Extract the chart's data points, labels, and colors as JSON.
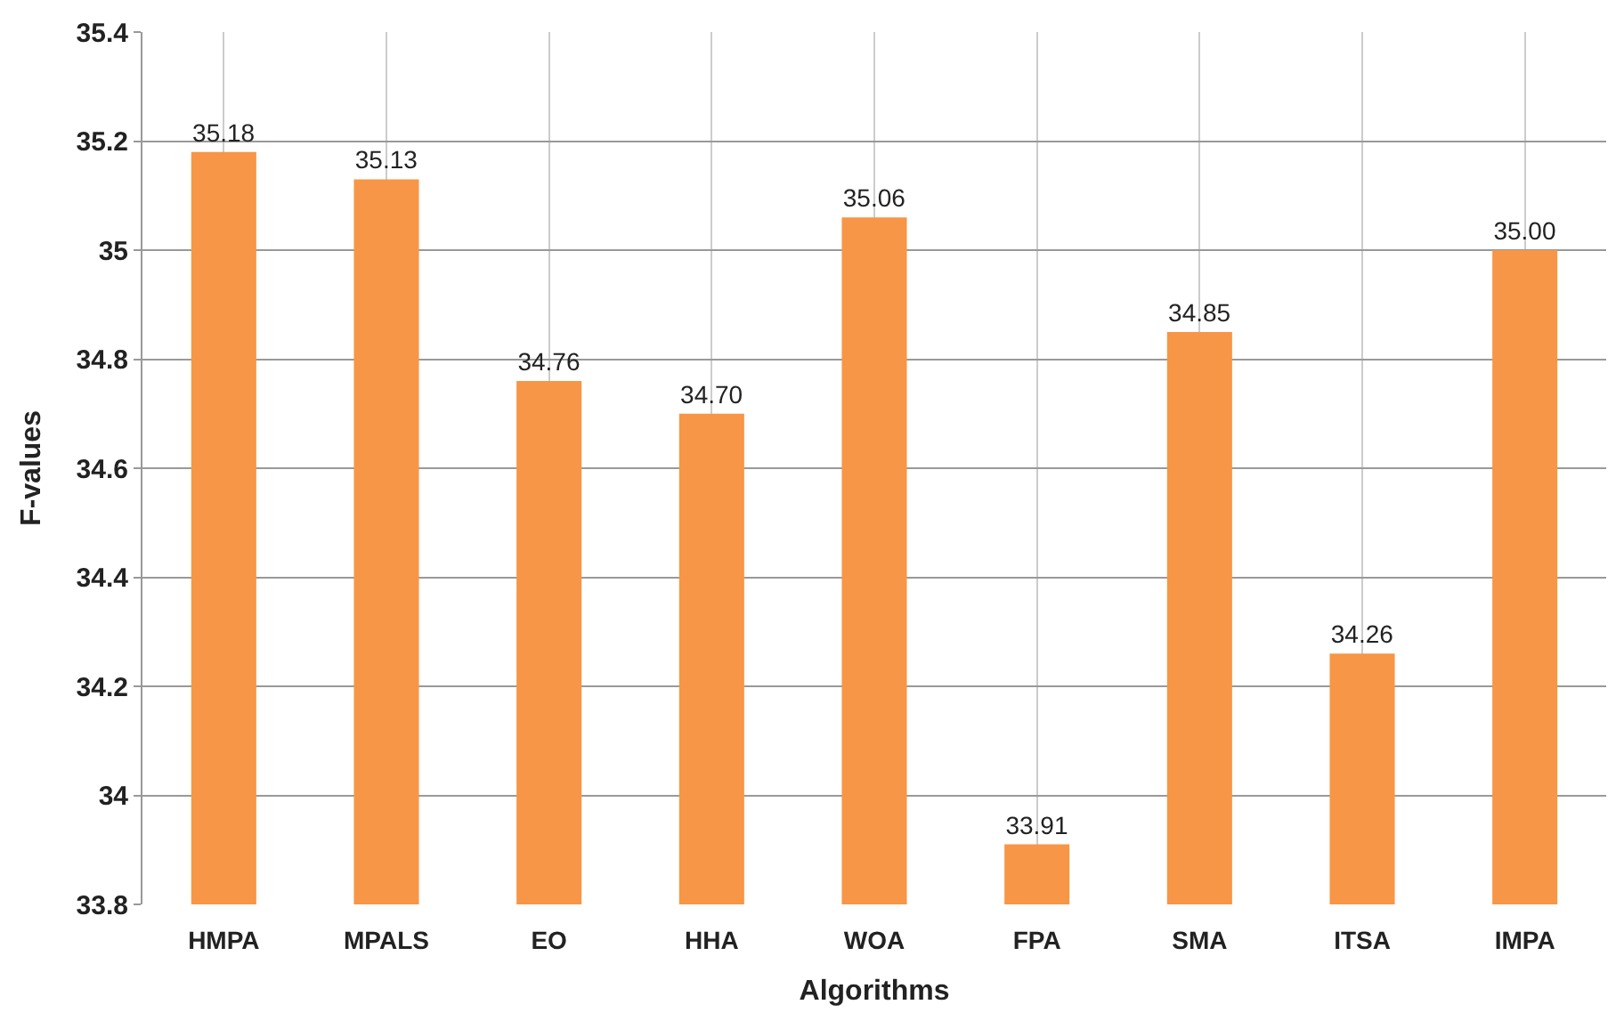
{
  "chart_data": {
    "type": "bar",
    "xlabel": "Algorithms",
    "ylabel": "F-values",
    "categories": [
      "HMPA",
      "MPALS",
      "EO",
      "HHA",
      "WOA",
      "FPA",
      "SMA",
      "ITSA",
      "IMPA"
    ],
    "values": [
      35.18,
      35.13,
      34.76,
      34.7,
      35.06,
      33.91,
      34.85,
      34.26,
      35.0
    ],
    "value_labels": [
      "35.18",
      "35.13",
      "34.76",
      "34.70",
      "35.06",
      "33.91",
      "34.85",
      "34.26",
      "35.00"
    ],
    "color": "#f79646",
    "ylim": [
      33.8,
      35.4
    ],
    "yticks": [
      33.8,
      34,
      34.2,
      34.4,
      34.6,
      34.8,
      35,
      35.2,
      35.4
    ],
    "grid": true
  }
}
